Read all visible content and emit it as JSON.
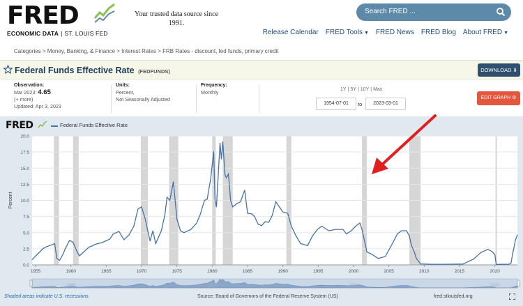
{
  "header": {
    "logo_text": "FRED",
    "logo_sub_left": "ECONOMIC DATA",
    "logo_sub_sep": "|",
    "logo_sub_right": "ST. LOUIS FED",
    "tagline_line1": "Your trusted data source since",
    "tagline_line2": "1991.",
    "search_placeholder": "Search FRED ...",
    "search_icon": "search-icon",
    "nav": [
      {
        "label": "Release Calendar",
        "dropdown": false
      },
      {
        "label": "FRED Tools",
        "dropdown": true
      },
      {
        "label": "FRED News",
        "dropdown": false
      },
      {
        "label": "FRED Blog",
        "dropdown": false
      },
      {
        "label": "About FRED",
        "dropdown": true
      }
    ]
  },
  "breadcrumb": "Categories > Money, Banking, & Finance > Interest Rates > FRB Rates - discount, fed funds, primary credit",
  "series": {
    "title": "Federal Funds Effective Rate",
    "id": "(FEDFUNDS)",
    "download_label": "DOWNLOAD",
    "observation_label": "Observation:",
    "observation_date": "Mar 2023:",
    "observation_value": "4.65",
    "more": "(+ more)",
    "updated": "Updated: Apr 3, 2023",
    "units_label": "Units:",
    "units_line1": "Percent,",
    "units_line2": "Not Seasonally Adjusted",
    "frequency_label": "Frequency:",
    "frequency": "Monthly",
    "ranges": [
      "1Y",
      "5Y",
      "10Y",
      "Max"
    ],
    "range_sep": "|",
    "start_date": "1954-07-01",
    "to_label": "to",
    "end_date": "2023-03-01",
    "edit_label": "EDIT GRAPH"
  },
  "chart": {
    "logo": "FRED",
    "legend": "Federal Funds Effective Rate",
    "ylabel": "Percent",
    "footer_recession": "Shaded areas indicate U.S. recessions.",
    "footer_source": "Source: Board of Governors of the Federal Reserve System (US)",
    "footer_site": "fred.stlouisfed.org",
    "colors": {
      "line": "#4572a7",
      "recession": "#d6d6d6",
      "plot_bg": "#ffffff",
      "arrow": "#e02020"
    }
  },
  "chart_data": {
    "type": "line",
    "ylabel": "Percent",
    "ylim": [
      0,
      20
    ],
    "xlim": [
      1954.5,
      2023.2
    ],
    "yticks": [
      "0.0",
      "2.5",
      "5.0",
      "7.5",
      "10.0",
      "12.5",
      "15.0",
      "17.5",
      "20.0"
    ],
    "xticks": [
      "1955",
      "1960",
      "1965",
      "1970",
      "1975",
      "1980",
      "1985",
      "1990",
      "1995",
      "2000",
      "2005",
      "2010",
      "2015",
      "2020"
    ],
    "grid": true,
    "recessions": [
      [
        1957.6,
        1958.3
      ],
      [
        1960.3,
        1961.1
      ],
      [
        1969.9,
        1970.9
      ],
      [
        1973.9,
        1975.2
      ],
      [
        1980.0,
        1980.5
      ],
      [
        1981.5,
        1982.9
      ],
      [
        1990.5,
        1991.2
      ],
      [
        2001.2,
        2001.9
      ],
      [
        2007.9,
        2009.5
      ],
      [
        2020.1,
        2020.3
      ]
    ],
    "series": [
      {
        "name": "Federal Funds Effective Rate",
        "x": [
          1954.5,
          1955.0,
          1955.5,
          1956.0,
          1956.5,
          1957.0,
          1957.7,
          1958.0,
          1958.4,
          1958.8,
          1959.2,
          1959.8,
          1960.3,
          1960.8,
          1961.2,
          1961.8,
          1962.5,
          1963.5,
          1964.5,
          1965.5,
          1966.0,
          1966.8,
          1967.5,
          1968.2,
          1968.9,
          1969.5,
          1970.0,
          1970.5,
          1970.9,
          1971.2,
          1971.6,
          1972.0,
          1972.8,
          1973.3,
          1973.6,
          1974.0,
          1974.5,
          1975.0,
          1975.5,
          1976.0,
          1977.0,
          1977.8,
          1978.3,
          1978.9,
          1979.3,
          1979.8,
          1980.2,
          1980.4,
          1980.6,
          1980.9,
          1981.1,
          1981.3,
          1981.5,
          1981.8,
          1982.0,
          1982.3,
          1982.6,
          1982.9,
          1983.5,
          1984.0,
          1984.6,
          1985.0,
          1985.6,
          1986.0,
          1986.5,
          1987.0,
          1987.5,
          1988.0,
          1988.5,
          1989.0,
          1989.5,
          1990.0,
          1990.7,
          1991.2,
          1991.8,
          1992.5,
          1993.5,
          1994.2,
          1994.9,
          1995.5,
          1996.5,
          1997.5,
          1998.5,
          1999.0,
          1999.7,
          2000.3,
          2000.9,
          2001.2,
          2001.6,
          2001.9,
          2002.5,
          2003.5,
          2004.5,
          2005.0,
          2005.6,
          2006.2,
          2006.8,
          2007.5,
          2007.9,
          2008.2,
          2008.6,
          2008.9,
          2009.5,
          2011.0,
          2013.0,
          2015.5,
          2016.0,
          2017.0,
          2018.0,
          2019.0,
          2019.6,
          2020.0,
          2020.2,
          2020.5,
          2021.0,
          2021.5,
          2022.0,
          2022.3,
          2022.5,
          2022.7,
          2022.9,
          2023.2
        ],
        "y": [
          0.8,
          1.4,
          1.9,
          2.5,
          2.8,
          3.0,
          3.3,
          1.0,
          0.7,
          1.5,
          2.5,
          3.8,
          3.5,
          2.2,
          1.4,
          2.0,
          2.7,
          3.2,
          3.5,
          4.0,
          4.8,
          5.2,
          3.9,
          4.6,
          6.0,
          8.7,
          9.0,
          7.2,
          5.2,
          3.7,
          5.3,
          3.3,
          5.3,
          7.8,
          10.5,
          10.0,
          12.9,
          7.1,
          5.3,
          5.0,
          5.5,
          6.5,
          7.8,
          10.0,
          10.2,
          13.5,
          17.6,
          10.0,
          9.0,
          15.0,
          18.9,
          16.4,
          19.1,
          14.0,
          13.5,
          14.1,
          10.0,
          9.0,
          9.5,
          9.8,
          11.6,
          8.0,
          7.9,
          7.5,
          6.3,
          6.1,
          6.7,
          6.6,
          7.7,
          9.8,
          9.0,
          8.2,
          8.0,
          6.0,
          4.6,
          3.3,
          3.0,
          4.5,
          5.5,
          6.0,
          5.3,
          5.5,
          5.5,
          4.8,
          5.3,
          6.0,
          6.5,
          5.5,
          3.5,
          2.0,
          1.7,
          1.0,
          1.3,
          2.3,
          3.5,
          4.8,
          5.3,
          5.3,
          4.5,
          3.0,
          2.0,
          1.0,
          0.15,
          0.1,
          0.1,
          0.13,
          0.4,
          0.9,
          1.9,
          2.4,
          2.1,
          1.6,
          0.05,
          0.08,
          0.09,
          0.09,
          0.08,
          0.3,
          1.6,
          2.6,
          3.8,
          4.65
        ]
      }
    ],
    "navigator_labels": [
      "1960",
      "1980",
      "2000",
      "2020"
    ]
  }
}
